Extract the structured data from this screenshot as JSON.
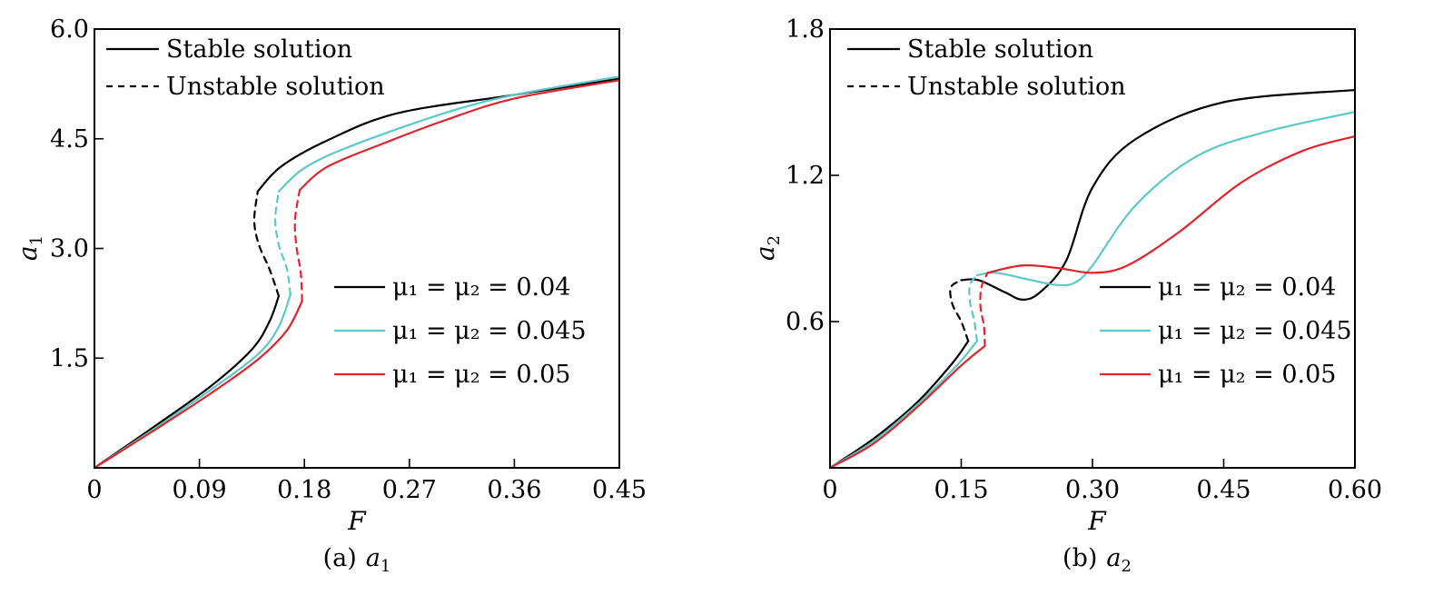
{
  "chart_data": [
    {
      "id": "a",
      "type": "line",
      "caption_prefix": "(a)",
      "caption_var": "a",
      "caption_sub": "1",
      "xlabel": "F",
      "ylabel_var": "a",
      "ylabel_sub": "1",
      "xlim": [
        0,
        0.45
      ],
      "ylim": [
        0,
        6.0
      ],
      "xticks": [
        "0",
        "0.09",
        "0.18",
        "0.27",
        "0.36",
        "0.45"
      ],
      "xtick_values": [
        0,
        0.09,
        0.18,
        0.27,
        0.36,
        0.45
      ],
      "yticks": [
        "1.5",
        "3.0",
        "4.5",
        "6.0"
      ],
      "ytick_values": [
        1.5,
        3.0,
        4.5,
        6.0
      ],
      "style_legend": [
        {
          "label": "Stable solution",
          "dash": "solid"
        },
        {
          "label": "Unstable solution",
          "dash": "dashed"
        }
      ],
      "series_legend": [
        {
          "label": "μ₁ = μ₂ = 0.04",
          "color": "#000000"
        },
        {
          "label": "μ₁ = μ₂ = 0.045",
          "color": "#5ec8c8"
        },
        {
          "label": "μ₁ = μ₂ = 0.05",
          "color": "#e0242c"
        }
      ],
      "series": [
        {
          "name": "μ1 = μ2 = 0.04",
          "color": "#000000",
          "stable_lower": [
            [
              0,
              0
            ],
            [
              0.05,
              0.55
            ],
            [
              0.1,
              1.12
            ],
            [
              0.135,
              1.62
            ],
            [
              0.15,
              2.0
            ],
            [
              0.158,
              2.35
            ]
          ],
          "unstable": [
            [
              0.158,
              2.35
            ],
            [
              0.15,
              2.72
            ],
            [
              0.141,
              3.05
            ],
            [
              0.137,
              3.38
            ],
            [
              0.14,
              3.78
            ]
          ],
          "stable_upper": [
            [
              0.14,
              3.78
            ],
            [
              0.16,
              4.12
            ],
            [
              0.2,
              4.48
            ],
            [
              0.26,
              4.85
            ],
            [
              0.36,
              5.1
            ],
            [
              0.45,
              5.32
            ]
          ]
        },
        {
          "name": "μ1 = μ2 = 0.045",
          "color": "#5ec8c8",
          "stable_lower": [
            [
              0,
              0
            ],
            [
              0.05,
              0.52
            ],
            [
              0.1,
              1.07
            ],
            [
              0.14,
              1.55
            ],
            [
              0.158,
              1.93
            ],
            [
              0.168,
              2.37
            ]
          ],
          "unstable": [
            [
              0.168,
              2.37
            ],
            [
              0.165,
              2.72
            ],
            [
              0.158,
              3.05
            ],
            [
              0.155,
              3.4
            ],
            [
              0.158,
              3.78
            ]
          ],
          "stable_upper": [
            [
              0.158,
              3.78
            ],
            [
              0.18,
              4.1
            ],
            [
              0.22,
              4.4
            ],
            [
              0.3,
              4.85
            ],
            [
              0.36,
              5.1
            ],
            [
              0.45,
              5.35
            ]
          ]
        },
        {
          "name": "μ1 = μ2 = 0.05",
          "color": "#e0242c",
          "stable_lower": [
            [
              0,
              0
            ],
            [
              0.05,
              0.5
            ],
            [
              0.1,
              1.02
            ],
            [
              0.14,
              1.48
            ],
            [
              0.165,
              1.88
            ],
            [
              0.178,
              2.28
            ]
          ],
          "unstable": [
            [
              0.178,
              2.28
            ],
            [
              0.177,
              2.65
            ],
            [
              0.173,
              3.05
            ],
            [
              0.172,
              3.4
            ],
            [
              0.176,
              3.8
            ]
          ],
          "stable_upper": [
            [
              0.176,
              3.8
            ],
            [
              0.2,
              4.12
            ],
            [
              0.25,
              4.45
            ],
            [
              0.3,
              4.75
            ],
            [
              0.36,
              5.05
            ],
            [
              0.45,
              5.3
            ]
          ]
        }
      ]
    },
    {
      "id": "b",
      "type": "line",
      "caption_prefix": "(b)",
      "caption_var": "a",
      "caption_sub": "2",
      "xlabel": "F",
      "ylabel_var": "a",
      "ylabel_sub": "2",
      "xlim": [
        0,
        0.6
      ],
      "ylim": [
        0,
        1.8
      ],
      "xticks": [
        "0",
        "0.15",
        "0.30",
        "0.45",
        "0.60"
      ],
      "xtick_values": [
        0,
        0.15,
        0.3,
        0.45,
        0.6
      ],
      "yticks": [
        "0.6",
        "1.2",
        "1.8"
      ],
      "ytick_values": [
        0.6,
        1.2,
        1.8
      ],
      "style_legend": [
        {
          "label": "Stable solution",
          "dash": "solid"
        },
        {
          "label": "Unstable solution",
          "dash": "dashed"
        }
      ],
      "series_legend": [
        {
          "label": "μ₁ = μ₂ = 0.04",
          "color": "#000000"
        },
        {
          "label": "μ₁ = μ₂ = 0.045",
          "color": "#5ec8c8"
        },
        {
          "label": "μ₁ = μ₂ = 0.05",
          "color": "#e0242c"
        }
      ],
      "series": [
        {
          "name": "μ1 = μ2 = 0.04",
          "color": "#000000",
          "stable_lower": [
            [
              0,
              0
            ],
            [
              0.05,
              0.12
            ],
            [
              0.1,
              0.27
            ],
            [
              0.14,
              0.43
            ],
            [
              0.158,
              0.52
            ]
          ],
          "unstable": [
            [
              0.158,
              0.52
            ],
            [
              0.15,
              0.6
            ],
            [
              0.14,
              0.67
            ],
            [
              0.138,
              0.74
            ],
            [
              0.15,
              0.77
            ]
          ],
          "stable_upper": [
            [
              0.15,
              0.77
            ],
            [
              0.17,
              0.77
            ],
            [
              0.2,
              0.72
            ],
            [
              0.22,
              0.69
            ],
            [
              0.24,
              0.72
            ],
            [
              0.27,
              0.85
            ],
            [
              0.3,
              1.15
            ],
            [
              0.35,
              1.35
            ],
            [
              0.45,
              1.5
            ],
            [
              0.6,
              1.55
            ]
          ]
        },
        {
          "name": "μ1 = μ2 = 0.045",
          "color": "#5ec8c8",
          "stable_lower": [
            [
              0,
              0
            ],
            [
              0.05,
              0.11
            ],
            [
              0.1,
              0.26
            ],
            [
              0.145,
              0.42
            ],
            [
              0.168,
              0.52
            ]
          ],
          "unstable": [
            [
              0.168,
              0.52
            ],
            [
              0.165,
              0.6
            ],
            [
              0.16,
              0.68
            ],
            [
              0.16,
              0.75
            ],
            [
              0.168,
              0.79
            ]
          ],
          "stable_upper": [
            [
              0.168,
              0.79
            ],
            [
              0.19,
              0.8
            ],
            [
              0.23,
              0.77
            ],
            [
              0.26,
              0.75
            ],
            [
              0.28,
              0.76
            ],
            [
              0.3,
              0.83
            ],
            [
              0.35,
              1.08
            ],
            [
              0.42,
              1.28
            ],
            [
              0.5,
              1.38
            ],
            [
              0.6,
              1.46
            ]
          ]
        },
        {
          "name": "μ1 = μ2 = 0.05",
          "color": "#e0242c",
          "stable_lower": [
            [
              0,
              0
            ],
            [
              0.05,
              0.1
            ],
            [
              0.1,
              0.25
            ],
            [
              0.15,
              0.42
            ],
            [
              0.177,
              0.5
            ]
          ],
          "unstable": [
            [
              0.177,
              0.5
            ],
            [
              0.176,
              0.58
            ],
            [
              0.172,
              0.66
            ],
            [
              0.173,
              0.74
            ],
            [
              0.18,
              0.8
            ]
          ],
          "stable_upper": [
            [
              0.18,
              0.8
            ],
            [
              0.22,
              0.83
            ],
            [
              0.26,
              0.82
            ],
            [
              0.3,
              0.8
            ],
            [
              0.34,
              0.83
            ],
            [
              0.4,
              0.97
            ],
            [
              0.47,
              1.17
            ],
            [
              0.54,
              1.3
            ],
            [
              0.6,
              1.36
            ]
          ]
        }
      ]
    }
  ]
}
